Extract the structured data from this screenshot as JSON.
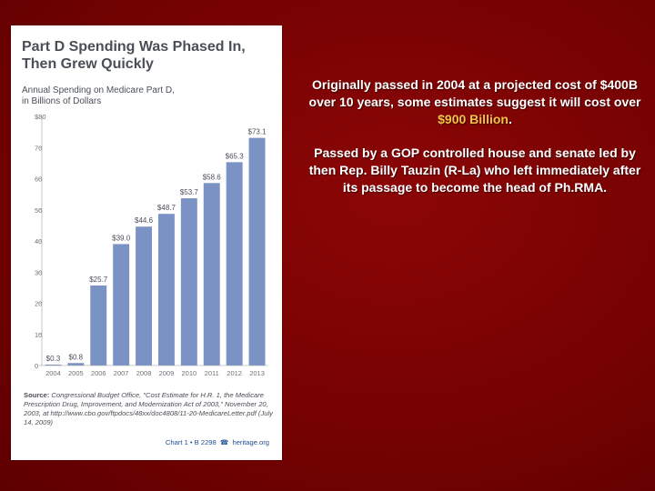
{
  "chart_data": {
    "type": "bar",
    "title_line1": "Part D Spending Was Phased In,",
    "title_line2": "Then Grew Quickly",
    "subtitle_line1": "Annual Spending on Medicare Part D,",
    "subtitle_line2": "in Billions of Dollars",
    "categories": [
      "2004",
      "2005",
      "2006",
      "2007",
      "2008",
      "2009",
      "2010",
      "2011",
      "2012",
      "2013"
    ],
    "values": [
      0.3,
      0.8,
      25.7,
      39.0,
      44.6,
      48.7,
      53.7,
      58.6,
      65.3,
      73.1
    ],
    "data_labels": [
      "$0.3",
      "$0.8",
      "$25.7",
      "$39.0",
      "$44.6",
      "$48.7",
      "$53.7",
      "$58.6",
      "$65.3",
      "$73.1"
    ],
    "y_ticks": [
      "0",
      "10",
      "20",
      "30",
      "40",
      "50",
      "60",
      "70",
      "$80"
    ],
    "ylim": [
      0,
      80
    ],
    "bar_color": "#7b93c4",
    "grid": false
  },
  "source": {
    "label": "Source:",
    "text": "Congressional Budget Office, \"Cost Estimate for H.R. 1, the Medicare Prescription Drug, Improvement, and Modernization Act of 2003,\" November 20, 2003, at http://www.cbo.gov/ftpdocs/48xx/doc4808/11-20-MedicareLetter.pdf (July 14, 2009)"
  },
  "footer": {
    "chart_ref": "Chart 1 • B 2298",
    "site": "heritage.org"
  },
  "slide_text": {
    "p1_before": "Originally passed in 2004 at a projected cost of $400B over 10 years, some estimates suggest it will cost over ",
    "p1_highlight": "$900 Billion",
    "p1_after": ".",
    "p2": "Passed by a GOP controlled house and senate led by then Rep. Billy Tauzin (R-La) who left immediately after its passage to become the head of Ph.RMA."
  },
  "colors": {
    "background": "#760202",
    "highlight": "#f2c24a",
    "bar": "#7b93c4"
  }
}
